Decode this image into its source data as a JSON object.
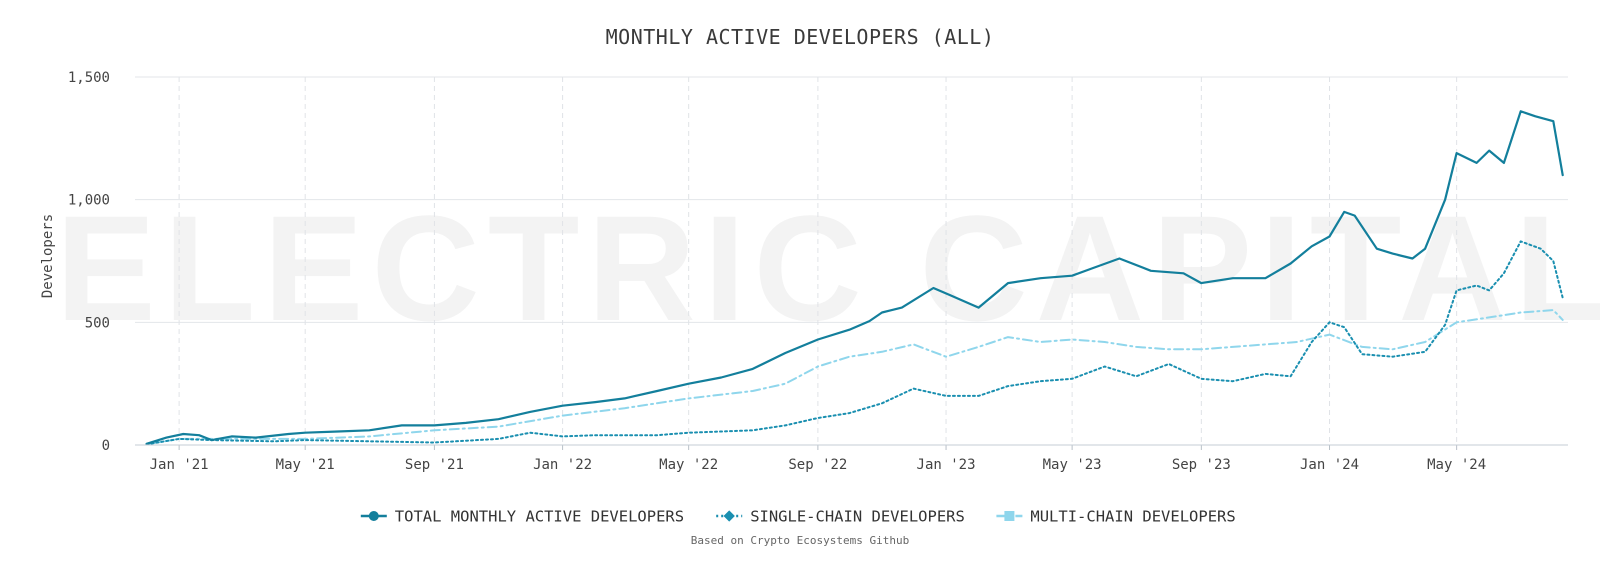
{
  "chart_data": {
    "type": "line",
    "title": "MONTHLY ACTIVE DEVELOPERS (ALL)",
    "xlabel": "",
    "ylabel": "Developers",
    "ylim": [
      0,
      1500
    ],
    "yticks": [
      0,
      500,
      1000,
      1500
    ],
    "ytick_labels": [
      "0",
      "500",
      "1,000",
      "1,500"
    ],
    "xlim": [
      "2020-11-20",
      "2024-08-15"
    ],
    "xticks": [
      "2021-01-01",
      "2021-05-01",
      "2021-09-01",
      "2022-01-01",
      "2022-05-01",
      "2022-09-01",
      "2023-01-01",
      "2023-05-01",
      "2023-09-01",
      "2024-01-01",
      "2024-05-01"
    ],
    "xtick_labels": [
      "Jan '21",
      "May '21",
      "Sep '21",
      "Jan '22",
      "May '22",
      "Sep '22",
      "Jan '23",
      "May '23",
      "Sep '23",
      "Jan '24",
      "May '24"
    ],
    "grid": true,
    "legend_position": "bottom-center",
    "watermark": "ELECTRIC CAPITAL",
    "source_note": "Based on Crypto Ecosystems Github",
    "series": [
      {
        "name": "TOTAL MONTHLY ACTIVE DEVELOPERS",
        "color": "#137f9c",
        "style": "solid",
        "marker": "circle",
        "x": [
          "2020-12-01",
          "2020-12-20",
          "2021-01-05",
          "2021-01-20",
          "2021-02-01",
          "2021-02-20",
          "2021-03-15",
          "2021-04-15",
          "2021-05-01",
          "2021-06-01",
          "2021-07-01",
          "2021-08-01",
          "2021-09-01",
          "2021-10-01",
          "2021-11-01",
          "2021-12-01",
          "2022-01-01",
          "2022-02-01",
          "2022-03-01",
          "2022-04-01",
          "2022-05-01",
          "2022-06-01",
          "2022-07-01",
          "2022-08-01",
          "2022-09-01",
          "2022-10-01",
          "2022-10-20",
          "2022-11-01",
          "2022-11-20",
          "2022-12-20",
          "2023-01-05",
          "2023-02-01",
          "2023-03-01",
          "2023-04-01",
          "2023-05-01",
          "2023-05-20",
          "2023-06-15",
          "2023-07-15",
          "2023-08-15",
          "2023-09-01",
          "2023-10-01",
          "2023-11-01",
          "2023-11-25",
          "2023-12-15",
          "2024-01-01",
          "2024-01-15",
          "2024-01-25",
          "2024-02-15",
          "2024-03-01",
          "2024-03-20",
          "2024-04-01",
          "2024-04-20",
          "2024-05-01",
          "2024-05-20",
          "2024-06-01",
          "2024-06-15",
          "2024-07-01",
          "2024-07-15",
          "2024-08-01",
          "2024-08-10"
        ],
        "y": [
          5,
          30,
          45,
          40,
          20,
          35,
          30,
          45,
          50,
          55,
          60,
          80,
          80,
          90,
          105,
          135,
          160,
          175,
          190,
          220,
          250,
          275,
          310,
          375,
          430,
          470,
          505,
          540,
          560,
          640,
          610,
          560,
          660,
          680,
          690,
          720,
          760,
          710,
          700,
          660,
          680,
          680,
          740,
          810,
          850,
          950,
          935,
          800,
          780,
          760,
          800,
          1000,
          1190,
          1150,
          1200,
          1150,
          1360,
          1340,
          1320,
          1100
        ]
      },
      {
        "name": "SINGLE-CHAIN DEVELOPERS",
        "color": "#1a8fb0",
        "style": "dotted",
        "marker": "diamond",
        "x": [
          "2020-12-01",
          "2021-01-01",
          "2021-02-01",
          "2021-04-01",
          "2021-05-01",
          "2021-07-01",
          "2021-09-01",
          "2021-11-01",
          "2021-12-01",
          "2022-01-01",
          "2022-02-01",
          "2022-04-01",
          "2022-05-01",
          "2022-07-01",
          "2022-08-01",
          "2022-09-01",
          "2022-10-01",
          "2022-11-01",
          "2022-12-01",
          "2023-01-01",
          "2023-02-01",
          "2023-03-01",
          "2023-04-01",
          "2023-05-01",
          "2023-06-01",
          "2023-07-01",
          "2023-08-01",
          "2023-09-01",
          "2023-10-01",
          "2023-11-01",
          "2023-11-25",
          "2023-12-15",
          "2024-01-01",
          "2024-01-15",
          "2024-02-01",
          "2024-03-01",
          "2024-04-01",
          "2024-04-20",
          "2024-05-01",
          "2024-05-20",
          "2024-06-01",
          "2024-06-15",
          "2024-07-01",
          "2024-07-20",
          "2024-08-01",
          "2024-08-10"
        ],
        "y": [
          3,
          25,
          20,
          15,
          20,
          15,
          10,
          25,
          50,
          35,
          40,
          40,
          50,
          60,
          80,
          110,
          130,
          170,
          230,
          200,
          200,
          240,
          260,
          270,
          320,
          280,
          330,
          270,
          260,
          290,
          280,
          420,
          500,
          480,
          370,
          360,
          380,
          490,
          630,
          650,
          630,
          700,
          830,
          800,
          750,
          600
        ]
      },
      {
        "name": "MULTI-CHAIN DEVELOPERS",
        "color": "#8fd6ec",
        "style": "dashdot",
        "marker": "square",
        "x": [
          "2020-12-01",
          "2021-01-01",
          "2021-03-01",
          "2021-05-01",
          "2021-07-01",
          "2021-09-01",
          "2021-11-01",
          "2022-01-01",
          "2022-03-01",
          "2022-05-01",
          "2022-07-01",
          "2022-08-01",
          "2022-09-01",
          "2022-10-01",
          "2022-11-01",
          "2022-12-01",
          "2023-01-01",
          "2023-02-01",
          "2023-03-01",
          "2023-04-01",
          "2023-05-01",
          "2023-06-01",
          "2023-07-01",
          "2023-08-01",
          "2023-09-01",
          "2023-10-01",
          "2023-11-01",
          "2023-12-01",
          "2024-01-01",
          "2024-02-01",
          "2024-03-01",
          "2024-04-01",
          "2024-05-01",
          "2024-06-01",
          "2024-07-01",
          "2024-08-01",
          "2024-08-10"
        ],
        "y": [
          3,
          25,
          25,
          25,
          35,
          60,
          75,
          120,
          150,
          190,
          220,
          250,
          320,
          360,
          380,
          410,
          360,
          400,
          440,
          420,
          430,
          420,
          400,
          390,
          390,
          400,
          410,
          420,
          450,
          400,
          390,
          420,
          500,
          520,
          540,
          550,
          510
        ]
      }
    ]
  }
}
